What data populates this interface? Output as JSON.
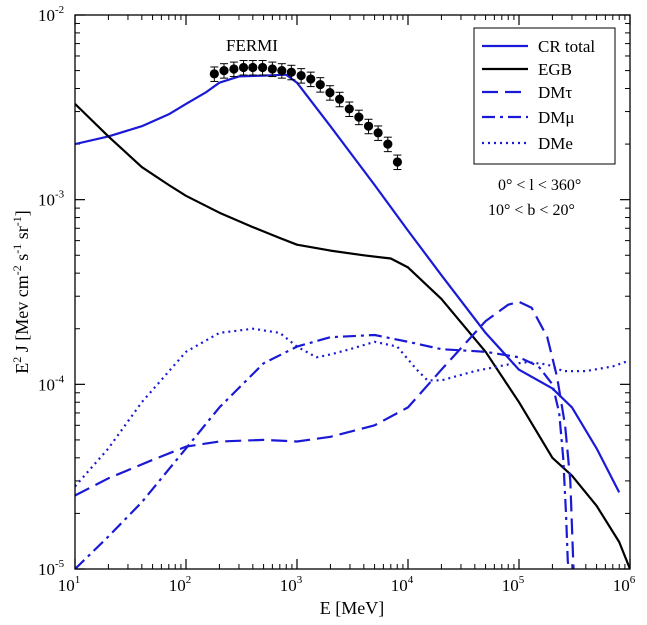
{
  "chart_data": {
    "type": "line",
    "title": "",
    "xlabel": "E [MeV]",
    "ylabel_parts": [
      "E",
      "2",
      " J [Mev cm",
      "-2",
      " s",
      "-1",
      " sr",
      "-1",
      "]"
    ],
    "x_scale": "log",
    "y_scale": "log",
    "xlim": [
      10,
      1000000
    ],
    "ylim": [
      1e-05,
      0.01
    ],
    "x_ticks": [
      {
        "base": "10",
        "exp": "1"
      },
      {
        "base": "10",
        "exp": "2"
      },
      {
        "base": "10",
        "exp": "3"
      },
      {
        "base": "10",
        "exp": "4"
      },
      {
        "base": "10",
        "exp": "5"
      },
      {
        "base": "10",
        "exp": "6"
      }
    ],
    "y_ticks": [
      {
        "base": "10",
        "exp": "-5"
      },
      {
        "base": "10",
        "exp": "-4"
      },
      {
        "base": "10",
        "exp": "-3"
      },
      {
        "base": "10",
        "exp": "-2"
      }
    ],
    "legend_position": "top-right",
    "annotations": {
      "fermi_label": "FERMI",
      "region_l": "0° < l < 360°",
      "region_b": "10° < b < 20°"
    },
    "series": [
      {
        "name": "CR total",
        "style": "solid",
        "color": "#1a1ad6",
        "x": [
          10,
          20,
          40,
          70,
          100,
          150,
          200,
          300,
          500,
          800,
          1000,
          2000,
          5000,
          10000,
          20000,
          50000,
          100000,
          200000,
          300000,
          500000,
          800000
        ],
        "y": [
          0.002,
          0.0022,
          0.0025,
          0.0029,
          0.0033,
          0.0038,
          0.0043,
          0.00465,
          0.0047,
          0.00475,
          0.0043,
          0.0025,
          0.0012,
          0.00068,
          0.00039,
          0.00019,
          0.00012,
          9.5e-05,
          7.5e-05,
          4.5e-05,
          2.6e-05
        ]
      },
      {
        "name": "EGB",
        "style": "solid",
        "color": "#000000",
        "x": [
          10,
          20,
          40,
          70,
          100,
          200,
          400,
          700,
          1000,
          2000,
          4000,
          7000,
          10000,
          20000,
          50000,
          100000,
          200000,
          300000,
          500000,
          800000,
          1000000
        ],
        "y": [
          0.0033,
          0.0022,
          0.0015,
          0.0012,
          0.00105,
          0.00085,
          0.00071,
          0.00062,
          0.00057,
          0.00053,
          0.0005,
          0.00048,
          0.00043,
          0.00029,
          0.00015,
          8e-05,
          4e-05,
          3.2e-05,
          2.2e-05,
          1.4e-05,
          1e-05
        ]
      },
      {
        "name": "DMτ",
        "style": "dash",
        "color": "#1a1ad6",
        "x": [
          10,
          20,
          50,
          100,
          200,
          500,
          1000,
          2000,
          5000,
          10000,
          20000,
          50000,
          80000,
          100000,
          130000,
          180000,
          220000,
          260000,
          290000,
          310000
        ],
        "y": [
          2.5e-05,
          3.1e-05,
          3.9e-05,
          4.6e-05,
          4.9e-05,
          5e-05,
          4.9e-05,
          5.2e-05,
          6e-05,
          7.5e-05,
          0.00012,
          0.00022,
          0.00027,
          0.00028,
          0.00026,
          0.00018,
          0.00011,
          6e-05,
          3e-05,
          1e-05
        ]
      },
      {
        "name": "DMμ",
        "style": "dashdot",
        "color": "#1a1ad6",
        "x": [
          10,
          20,
          40,
          100,
          200,
          500,
          1000,
          2000,
          5000,
          10000,
          20000,
          50000,
          100000,
          150000,
          200000,
          230000,
          250000,
          265000,
          275000,
          282000
        ],
        "y": [
          1e-05,
          1.5e-05,
          2.3e-05,
          4.5e-05,
          7.5e-05,
          0.00013,
          0.00016,
          0.00018,
          0.000185,
          0.00017,
          0.000155,
          0.00015,
          0.00014,
          0.000125,
          0.0001,
          7e-05,
          4e-05,
          2e-05,
          1.1e-05,
          1e-05
        ]
      },
      {
        "name": "DMe",
        "style": "dot",
        "color": "#1a1ad6",
        "x": [
          10,
          20,
          40,
          100,
          200,
          400,
          700,
          1000,
          1500,
          2000,
          3000,
          5000,
          8000,
          12000,
          15000,
          20000,
          40000,
          80000,
          120000,
          180000,
          250000,
          400000,
          700000,
          1000000
        ],
        "y": [
          2.8e-05,
          4.5e-05,
          8e-05,
          0.00015,
          0.00019,
          0.0002,
          0.00019,
          0.00016,
          0.00014,
          0.000145,
          0.000155,
          0.00017,
          0.00016,
          0.00012,
          0.000105,
          0.000105,
          0.000118,
          0.000128,
          0.000132,
          0.000128,
          0.000118,
          0.000118,
          0.000125,
          0.000135
        ]
      }
    ],
    "fermi_points": {
      "name": "FERMI",
      "color": "#000000",
      "x": [
        180,
        220,
        270,
        330,
        400,
        490,
        600,
        730,
        890,
        1090,
        1330,
        1620,
        1980,
        2420,
        2960,
        3610,
        4410,
        5380,
        6580,
        8030
      ],
      "y": [
        0.0048,
        0.005,
        0.0051,
        0.0052,
        0.0052,
        0.0052,
        0.0051,
        0.005,
        0.0049,
        0.0047,
        0.0045,
        0.0042,
        0.0038,
        0.0035,
        0.0031,
        0.0028,
        0.0025,
        0.0023,
        0.002,
        0.0016
      ],
      "err_frac": 0.09
    }
  }
}
